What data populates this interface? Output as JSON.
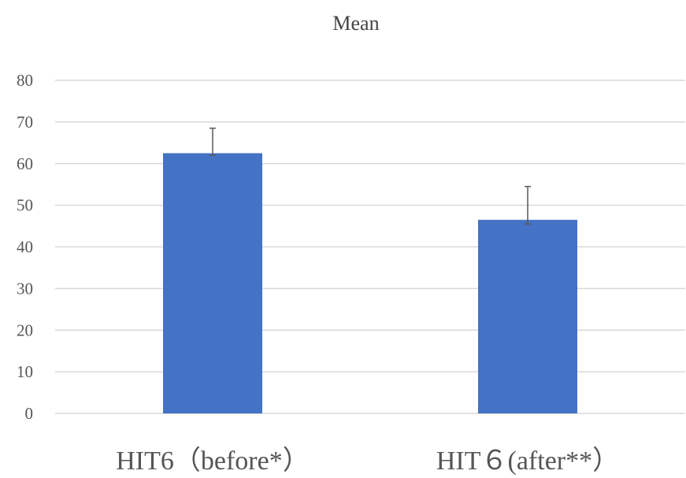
{
  "chart_data": {
    "type": "bar",
    "title": "Mean",
    "categories": [
      "HIT6（before*）",
      "HIT６(after**）"
    ],
    "values": [
      62.5,
      46.5
    ],
    "error_upper": [
      68.5,
      54.5
    ],
    "error_lower": [
      62.0,
      45.5
    ],
    "xlabel": "",
    "ylabel": "",
    "ylim": [
      0,
      80
    ],
    "yticks": [
      0,
      10,
      20,
      30,
      40,
      50,
      60,
      70,
      80
    ],
    "grid": true,
    "legend": "none",
    "colors": {
      "bar": "#4472C4",
      "grid": "#D9D9D9",
      "error": "#595959"
    }
  }
}
